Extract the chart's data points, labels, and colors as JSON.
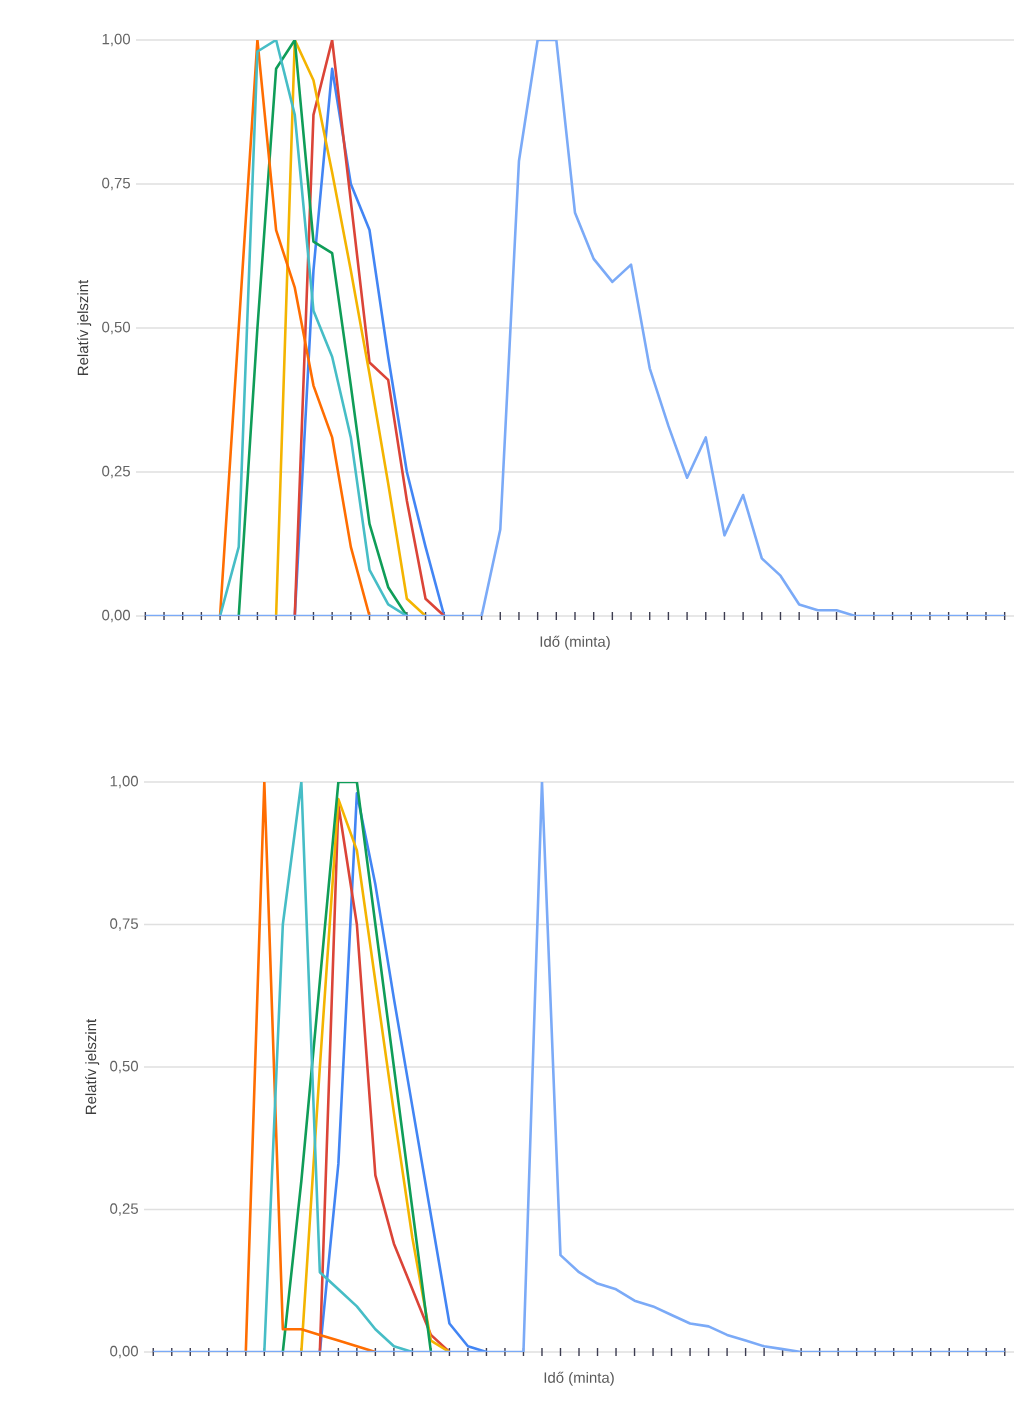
{
  "chart_data": [
    {
      "type": "line",
      "xlabel": "Idő (minta)",
      "ylabel": "Relatív jelszint",
      "grid": "y",
      "tick_labels": "y",
      "categories": [
        null,
        null,
        null,
        null,
        null,
        null,
        null,
        null,
        null,
        null,
        null,
        null,
        null,
        null,
        null,
        null,
        null,
        null,
        null,
        null,
        null,
        null,
        null,
        null,
        null,
        null,
        null,
        null,
        null,
        null,
        null,
        null,
        null,
        null,
        null,
        null,
        null,
        null,
        null,
        null,
        null,
        null,
        null,
        null,
        null,
        null,
        null
      ],
      "ylim": [
        0,
        1
      ],
      "yticks": [
        {
          "value": 0,
          "label": "0,00"
        },
        {
          "value": 0.25,
          "label": "0,25"
        },
        {
          "value": 0.5,
          "label": "0,50"
        },
        {
          "value": 0.75,
          "label": "0,75"
        },
        {
          "value": 1,
          "label": "1,00"
        }
      ],
      "series": [
        {
          "color": "#4285f4",
          "values": [
            null,
            null,
            null,
            null,
            null,
            null,
            null,
            null,
            0,
            0.6,
            0.95,
            0.75,
            0.67,
            0.45,
            0.25,
            0.12,
            0,
            null,
            null,
            null,
            null,
            null,
            null,
            null,
            null,
            null,
            null,
            null,
            null,
            null,
            null,
            null,
            null,
            null,
            null,
            null,
            null,
            null,
            null,
            null,
            null,
            null,
            null,
            null,
            null,
            null,
            null
          ]
        },
        {
          "color": "#db4437",
          "values": [
            null,
            null,
            null,
            null,
            null,
            null,
            null,
            null,
            0,
            0.87,
            1,
            0.72,
            0.44,
            0.41,
            0.2,
            0.03,
            0,
            null,
            null,
            null,
            null,
            null,
            null,
            null,
            null,
            null,
            null,
            null,
            null,
            null,
            null,
            null,
            null,
            null,
            null,
            null,
            null,
            null,
            null,
            null,
            null,
            null,
            null,
            null,
            null,
            null,
            null
          ]
        },
        {
          "color": "#f4b400",
          "values": [
            null,
            null,
            null,
            null,
            null,
            null,
            null,
            0,
            1,
            0.93,
            0.77,
            0.6,
            0.42,
            0.23,
            0.03,
            0,
            null,
            null,
            null,
            null,
            null,
            null,
            null,
            null,
            null,
            null,
            null,
            null,
            null,
            null,
            null,
            null,
            null,
            null,
            null,
            null,
            null,
            null,
            null,
            null,
            null,
            null,
            null,
            null,
            null,
            null,
            null
          ]
        },
        {
          "color": "#0f9d58",
          "values": [
            null,
            null,
            null,
            null,
            null,
            0,
            0.5,
            0.95,
            1,
            0.65,
            0.63,
            0.4,
            0.16,
            0.05,
            0,
            null,
            null,
            null,
            null,
            null,
            null,
            null,
            null,
            null,
            null,
            null,
            null,
            null,
            null,
            null,
            null,
            null,
            null,
            null,
            null,
            null,
            null,
            null,
            null,
            null,
            null,
            null,
            null,
            null,
            null,
            null,
            null
          ]
        },
        {
          "color": "#ff6d01",
          "values": [
            null,
            null,
            null,
            null,
            0,
            0.5,
            1,
            0.67,
            0.57,
            0.4,
            0.31,
            0.12,
            0,
            null,
            null,
            null,
            null,
            null,
            null,
            null,
            null,
            null,
            null,
            null,
            null,
            null,
            null,
            null,
            null,
            null,
            null,
            null,
            null,
            null,
            null,
            null,
            null,
            null,
            null,
            null,
            null,
            null,
            null,
            null,
            null,
            null,
            null
          ]
        },
        {
          "color": "#46bdc6",
          "values": [
            null,
            null,
            null,
            null,
            0,
            0.12,
            0.98,
            1,
            0.87,
            0.53,
            0.45,
            0.31,
            0.08,
            0.02,
            0,
            null,
            null,
            null,
            null,
            null,
            null,
            null,
            null,
            null,
            null,
            null,
            null,
            null,
            null,
            null,
            null,
            null,
            null,
            null,
            null,
            null,
            null,
            null,
            null,
            null,
            null,
            null,
            null,
            null,
            null,
            null,
            null
          ]
        },
        {
          "color": "#7baaf7",
          "values": [
            0,
            0,
            0,
            0,
            0,
            0,
            0,
            0,
            0,
            0,
            0,
            0,
            0,
            0,
            0,
            0,
            0,
            0,
            0,
            0.15,
            0.79,
            1,
            1,
            0.7,
            0.62,
            0.58,
            0.61,
            0.43,
            0.33,
            0.24,
            0.31,
            0.14,
            0.21,
            0.1,
            0.07,
            0.02,
            0.01,
            0.01,
            0,
            0,
            0,
            0,
            0,
            0,
            0,
            0,
            0
          ]
        }
      ]
    },
    {
      "type": "line",
      "xlabel": "Idő (minta)",
      "ylabel": "Relatív jelszint",
      "grid": "y",
      "tick_labels": "y",
      "categories": [
        null,
        null,
        null,
        null,
        null,
        null,
        null,
        null,
        null,
        null,
        null,
        null,
        null,
        null,
        null,
        null,
        null,
        null,
        null,
        null,
        null,
        null,
        null,
        null,
        null,
        null,
        null,
        null,
        null,
        null,
        null,
        null,
        null,
        null,
        null,
        null,
        null,
        null,
        null,
        null,
        null,
        null,
        null,
        null,
        null,
        null,
        null
      ],
      "ylim": [
        0,
        1
      ],
      "yticks": [
        {
          "value": 0,
          "label": "0,00"
        },
        {
          "value": 0.25,
          "label": "0,25"
        },
        {
          "value": 0.5,
          "label": "0,50"
        },
        {
          "value": 0.75,
          "label": "0,75"
        },
        {
          "value": 1,
          "label": "1,00"
        }
      ],
      "series": [
        {
          "color": "#4285f4",
          "values": [
            null,
            null,
            null,
            null,
            null,
            null,
            null,
            null,
            null,
            0,
            0.33,
            0.98,
            0.82,
            0.62,
            0.43,
            0.24,
            0.05,
            0.01,
            0,
            null,
            null,
            null,
            null,
            null,
            null,
            null,
            null,
            null,
            null,
            null,
            null,
            null,
            null,
            null,
            null,
            null,
            null,
            null,
            null,
            null,
            null,
            null,
            null,
            null,
            null,
            null,
            null
          ]
        },
        {
          "color": "#db4437",
          "values": [
            null,
            null,
            null,
            null,
            null,
            null,
            null,
            null,
            null,
            0,
            0.96,
            0.75,
            0.31,
            0.19,
            0.11,
            0.03,
            0,
            null,
            null,
            null,
            null,
            null,
            null,
            null,
            null,
            null,
            null,
            null,
            null,
            null,
            null,
            null,
            null,
            null,
            null,
            null,
            null,
            null,
            null,
            null,
            null,
            null,
            null,
            null,
            null,
            null,
            null
          ]
        },
        {
          "color": "#f4b400",
          "values": [
            null,
            null,
            null,
            null,
            null,
            null,
            null,
            null,
            0,
            0.5,
            0.97,
            0.88,
            0.65,
            0.42,
            0.2,
            0.02,
            0,
            null,
            null,
            null,
            null,
            null,
            null,
            null,
            null,
            null,
            null,
            null,
            null,
            null,
            null,
            null,
            null,
            null,
            null,
            null,
            null,
            null,
            null,
            null,
            null,
            null,
            null,
            null,
            null,
            null,
            null
          ]
        },
        {
          "color": "#0f9d58",
          "values": [
            null,
            null,
            null,
            null,
            null,
            null,
            null,
            0,
            0.3,
            0.65,
            1,
            1,
            0.75,
            0.5,
            0.25,
            0,
            null,
            null,
            null,
            null,
            null,
            null,
            null,
            null,
            null,
            null,
            null,
            null,
            null,
            null,
            null,
            null,
            null,
            null,
            null,
            null,
            null,
            null,
            null,
            null,
            null,
            null,
            null,
            null,
            null,
            null,
            null
          ]
        },
        {
          "color": "#ff6d01",
          "values": [
            null,
            null,
            null,
            null,
            null,
            0,
            1,
            0.04,
            0.04,
            0.03,
            0.02,
            0.01,
            0,
            null,
            null,
            null,
            null,
            null,
            null,
            null,
            null,
            null,
            null,
            null,
            null,
            null,
            null,
            null,
            null,
            null,
            null,
            null,
            null,
            null,
            null,
            null,
            null,
            null,
            null,
            null,
            null,
            null,
            null,
            null,
            null,
            null,
            null
          ]
        },
        {
          "color": "#46bdc6",
          "values": [
            null,
            null,
            null,
            null,
            null,
            null,
            0,
            0.75,
            1,
            0.14,
            0.11,
            0.08,
            0.04,
            0.01,
            0,
            null,
            null,
            null,
            null,
            null,
            null,
            null,
            null,
            null,
            null,
            null,
            null,
            null,
            null,
            null,
            null,
            null,
            null,
            null,
            null,
            null,
            null,
            null,
            null,
            null,
            null,
            null,
            null,
            null,
            null,
            null,
            null
          ]
        },
        {
          "color": "#7baaf7",
          "values": [
            0,
            0,
            0,
            0,
            0,
            0,
            0,
            0,
            0,
            0,
            0,
            0,
            0,
            0,
            0,
            0,
            0,
            0,
            0,
            0,
            0,
            1,
            0.17,
            0.14,
            0.12,
            0.11,
            0.09,
            0.08,
            0.065,
            0.05,
            0.045,
            0.03,
            0.02,
            0.01,
            0.005,
            0,
            0,
            0,
            0,
            0,
            0,
            0,
            0,
            0,
            0,
            0,
            0
          ]
        }
      ]
    }
  ]
}
